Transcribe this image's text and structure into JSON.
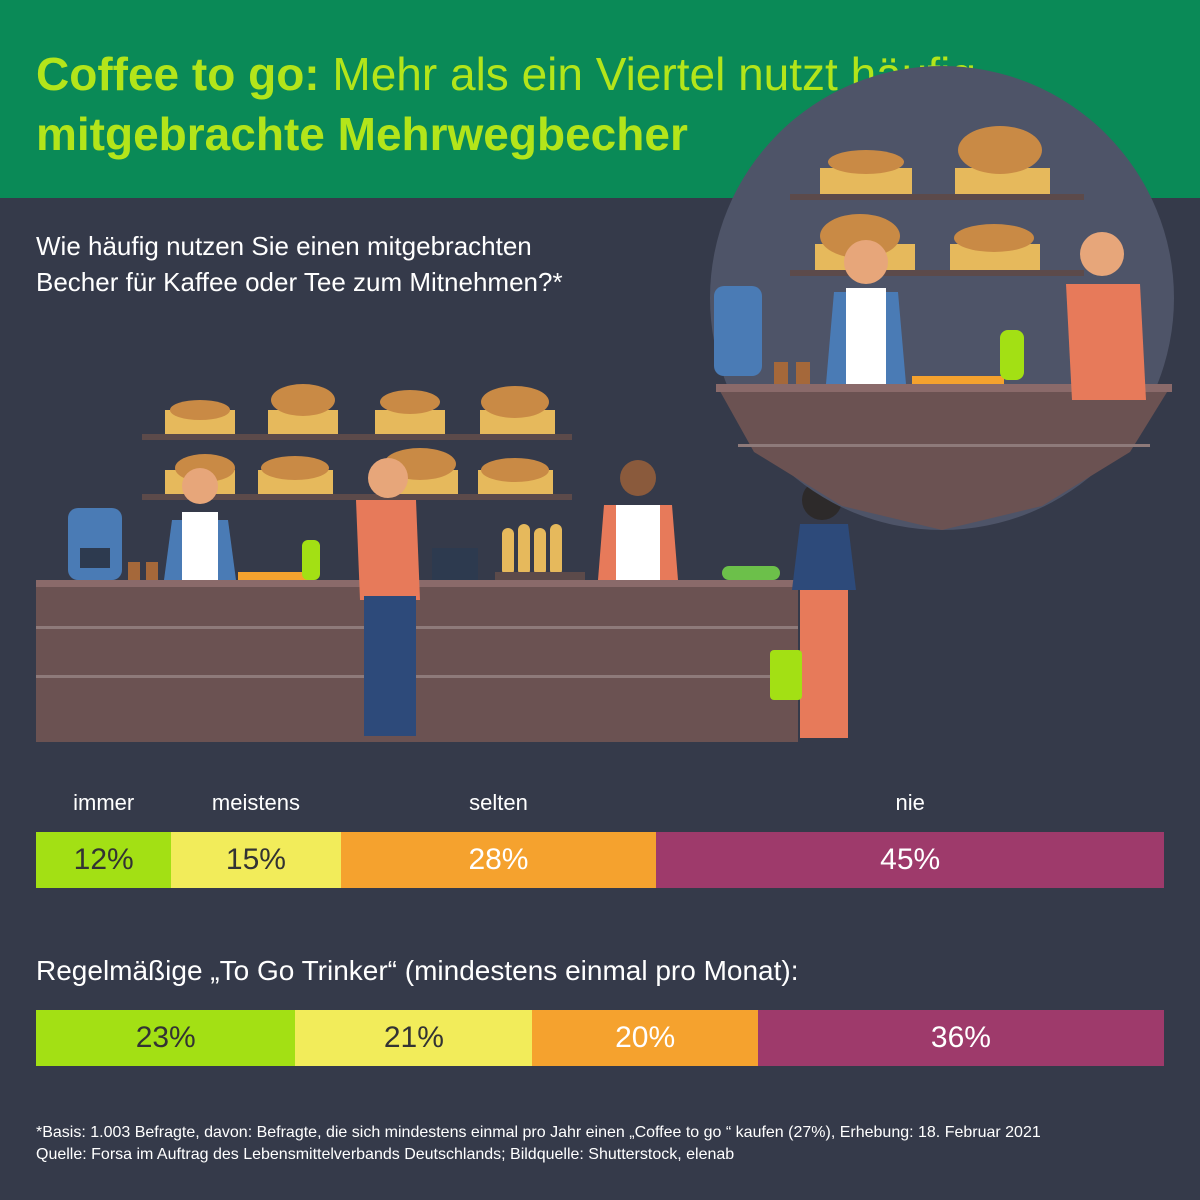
{
  "header": {
    "title_bold": "Coffee to go:",
    "title_regular": " Mehr als ein Viertel nutzt häufig",
    "title_line2": "mitgebrachte Mehrwegbecher"
  },
  "question": {
    "line1": "Wie häufig nutzen Sie einen mitgebrachten",
    "line2": "Becher für Kaffee oder Tee zum Mitnehmen?*"
  },
  "subquestion": "Regelmäßige „To Go Trinker“ (mindestens einmal pro Monat):",
  "footnote": {
    "line1": "*Basis: 1.003 Befragte, davon: Befragte, die sich mindestens einmal pro Jahr einen „Coffee to go “ kaufen (27%), Erhebung: 18. Februar 2021",
    "line2": "Quelle: Forsa im Auftrag des Lebensmittelverbands Deutschlands; Bildquelle: Shutterstock, elenab"
  },
  "colors": {
    "header_bg": "#0a8a57",
    "accent": "#b3e51a",
    "background": "#353a4a",
    "immer": "#a3e014",
    "meistens": "#f2ec5a",
    "selten": "#f5a22e",
    "nie": "#9e3a6b"
  },
  "chart_data": {
    "type": "bar",
    "orientation": "horizontal-stacked",
    "categories": [
      "immer",
      "meistens",
      "selten",
      "nie"
    ],
    "unit": "%",
    "series": [
      {
        "values": [
          12,
          15,
          28,
          45
        ],
        "labels": [
          "12%",
          "15%",
          "28%",
          "45%"
        ]
      },
      {
        "name": "Regelmäßige „To Go Trinker“ (mindestens einmal pro Monat):",
        "values": [
          23,
          21,
          20,
          36
        ],
        "labels": [
          "23%",
          "21%",
          "20%",
          "36%"
        ]
      }
    ],
    "text_colors": [
      "#333333",
      "#333333",
      "#ffffff",
      "#ffffff"
    ]
  }
}
